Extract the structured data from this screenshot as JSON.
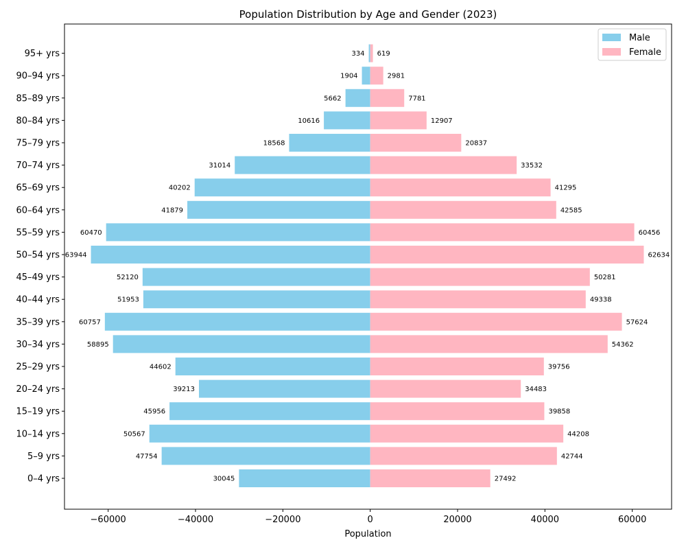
{
  "chart_data": {
    "type": "bar",
    "orientation": "horizontal",
    "title": "Population Distribution by Age and Gender (2023)",
    "xlabel": "Population",
    "ylabel": "",
    "xlim": [
      -70000,
      69000
    ],
    "xticks": [
      -60000,
      -40000,
      -20000,
      0,
      20000,
      40000,
      60000
    ],
    "xtick_labels": [
      "−60000",
      "−40000",
      "−20000",
      "0",
      "20000",
      "40000",
      "60000"
    ],
    "grid": false,
    "legend_position": "upper right",
    "categories": [
      "0–4 yrs",
      "5–9 yrs",
      "10–14 yrs",
      "15–19 yrs",
      "20–24 yrs",
      "25–29 yrs",
      "30–34 yrs",
      "35–39 yrs",
      "40–44 yrs",
      "45–49 yrs",
      "50–54 yrs",
      "55–59 yrs",
      "60–64 yrs",
      "65–69 yrs",
      "70–74 yrs",
      "75–79 yrs",
      "80–84 yrs",
      "85–89 yrs",
      "90–94 yrs",
      "95+ yrs"
    ],
    "series": [
      {
        "name": "Male",
        "color": "#87ceeb",
        "direction": "negative",
        "values": [
          30045,
          47754,
          50567,
          45956,
          39213,
          44602,
          58895,
          60757,
          51953,
          52120,
          63944,
          60470,
          41879,
          40202,
          31014,
          18568,
          10616,
          5662,
          1904,
          334
        ]
      },
      {
        "name": "Female",
        "color": "#ffb6c1",
        "direction": "positive",
        "values": [
          27492,
          42744,
          44208,
          39858,
          34483,
          39756,
          54362,
          57624,
          49338,
          50281,
          62634,
          60456,
          42585,
          41295,
          33532,
          20837,
          12907,
          7781,
          2981,
          619
        ]
      }
    ]
  }
}
